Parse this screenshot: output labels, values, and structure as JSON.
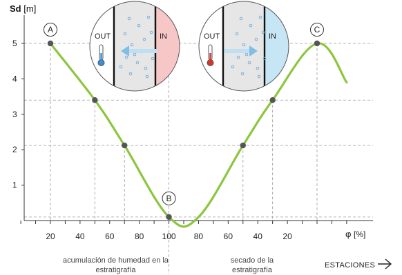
{
  "chart_data": {
    "type": "line",
    "ylabel": "Sd",
    "yunit": "[m]",
    "xlabel": "φ",
    "xunit": "[%]",
    "x_tick_labels": [
      "20",
      "40",
      "60",
      "80",
      "100",
      "80",
      "60",
      "40",
      "20"
    ],
    "y_tick_labels": [
      "1",
      "2",
      "3",
      "4",
      "5"
    ],
    "ylim": [
      0,
      5.5
    ],
    "series": [
      {
        "x": [
          0,
          30,
          50,
          80,
          100,
          130,
          150,
          180,
          200
        ],
        "y": [
          5.0,
          3.4,
          2.12,
          0.1,
          0.1,
          2.12,
          3.4,
          5.0,
          3.9
        ]
      }
    ],
    "markers": [
      {
        "x": 0,
        "y": 5.0
      },
      {
        "x": 30,
        "y": 3.4
      },
      {
        "x": 50,
        "y": 2.12
      },
      {
        "x": 80,
        "y": 0.1
      },
      {
        "x": 130,
        "y": 2.12
      },
      {
        "x": 150,
        "y": 3.4
      },
      {
        "x": 180,
        "y": 5.0
      }
    ],
    "point_labels": [
      {
        "text": "A",
        "x": 0,
        "y": 5.0
      },
      {
        "text": "B",
        "x": 80,
        "y": 0.1
      },
      {
        "text": "C",
        "x": 180,
        "y": 5.0
      }
    ],
    "line_color": "#8cc63f",
    "marker_color": "#555555",
    "grid": "dashed-guides"
  },
  "insets": [
    {
      "out_label": "OUT",
      "in_label": "IN",
      "in_color": "#f7c6c7",
      "thermo_color": "#3a8fd6",
      "arrow": "to-out"
    },
    {
      "out_label": "OUT",
      "in_label": "IN",
      "in_color": "#c6e6f5",
      "thermo_color": "#d9342b",
      "arrow": "to-in"
    }
  ],
  "notes": {
    "left": "acumulación de humedad en la estratigrafía",
    "right": "secado de la estratigrafía"
  },
  "footer": {
    "stations": "ESTACIONES"
  }
}
